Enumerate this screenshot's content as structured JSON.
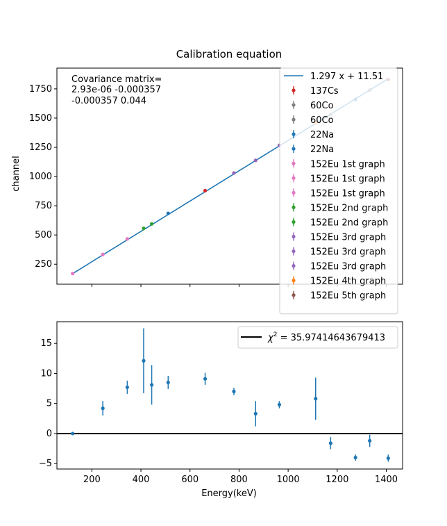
{
  "chart_data": [
    {
      "type": "scatter",
      "title": "Calibration equation",
      "xlabel": "",
      "ylabel": "channel",
      "xlim": [
        57.6,
        1466.4
      ],
      "ylim": [
        78.9,
        1927.7
      ],
      "x_ticks": [
        200,
        400,
        600,
        800,
        1000,
        1200,
        1400
      ],
      "y_ticks": [
        250,
        500,
        750,
        1000,
        1250,
        1500,
        1750
      ],
      "y_tick_labels": [
        "250",
        "500",
        "750",
        "1000",
        "1250",
        "1500",
        "1750"
      ],
      "annotation": [
        "Covariance matrix=",
        "2.93e-06   -0.000357",
        "-0.000357   0.044"
      ],
      "fit": {
        "label": "1.297 x + 11.51",
        "slope": 1.297,
        "intercept": 11.51,
        "x_range": [
          121.8,
          1408.0
        ],
        "color": "#1f77b4"
      },
      "legend_position": "upper right",
      "series": [
        {
          "name": "137Cs",
          "color": "#d62728",
          "points": [
            [
              661.7,
              879.0
            ]
          ]
        },
        {
          "name": "60Co",
          "color": "#7f7f7f",
          "points": [
            [
              1173.2,
              1531.0
            ]
          ]
        },
        {
          "name": "60Co",
          "color": "#7f7f7f",
          "points": [
            [
              1332.5,
              1739.0
            ]
          ]
        },
        {
          "name": "22Na",
          "color": "#1f77b4",
          "points": [
            [
              511.0,
              685.0
            ]
          ]
        },
        {
          "name": "22Na",
          "color": "#1f77b4",
          "points": [
            [
              1274.5,
              1660.0
            ]
          ]
        },
        {
          "name": "152Eu 1st graph",
          "color": "#e377c2",
          "points": [
            [
              121.8,
              170.0
            ]
          ]
        },
        {
          "name": "152Eu 1st graph",
          "color": "#e377c2",
          "points": [
            [
              244.7,
              333.0
            ]
          ]
        },
        {
          "name": "152Eu 1st graph",
          "color": "#e377c2",
          "points": [
            [
              344.3,
              466.0
            ]
          ]
        },
        {
          "name": "152Eu 2nd graph",
          "color": "#2ca02c",
          "points": [
            [
              411.1,
              557.0
            ]
          ]
        },
        {
          "name": "152Eu 2nd graph",
          "color": "#2ca02c",
          "points": [
            [
              444.0,
              595.0
            ]
          ]
        },
        {
          "name": "152Eu 3rd graph",
          "color": "#9467bd",
          "points": [
            [
              778.9,
              1030.0
            ]
          ]
        },
        {
          "name": "152Eu 3rd graph",
          "color": "#9467bd",
          "points": [
            [
              867.4,
              1138.0
            ]
          ]
        },
        {
          "name": "152Eu 3rd graph",
          "color": "#9467bd",
          "points": [
            [
              964.1,
              1267.0
            ]
          ]
        },
        {
          "name": "152Eu 4th graph",
          "color": "#ff7f0e",
          "points": [
            [
              1112.1,
              1460.0
            ]
          ]
        },
        {
          "name": "152Eu 5th graph",
          "color": "#8c564b",
          "points": [
            [
              1408.0,
              1830.0
            ]
          ]
        }
      ]
    },
    {
      "type": "scatter",
      "title": "",
      "xlabel": "Energy(keV)",
      "ylabel": "",
      "xlim": [
        57.6,
        1466.4
      ],
      "ylim": [
        -5.9,
        18.6
      ],
      "x_ticks": [
        200,
        400,
        600,
        800,
        1000,
        1200,
        1400
      ],
      "x_tick_labels": [
        "200",
        "400",
        "600",
        "800",
        "1000",
        "1200",
        "1400"
      ],
      "y_ticks": [
        -5,
        0,
        5,
        10,
        15
      ],
      "y_tick_labels": [
        "−5",
        "0",
        "5",
        "10",
        "15"
      ],
      "hline": 0,
      "legend": {
        "label": "χ² = 35.97414643679413",
        "label_main": "χ",
        "label_sup": "2",
        "label_rest": " = 35.97414643679413",
        "color": "#000000",
        "position": "upper right"
      },
      "color": "#1f77b4",
      "points": [
        {
          "x": 121.8,
          "y": 0.0,
          "err": 0.0
        },
        {
          "x": 244.7,
          "y": 4.2,
          "err": 1.2
        },
        {
          "x": 344.3,
          "y": 7.7,
          "err": 1.1
        },
        {
          "x": 411.1,
          "y": 12.1,
          "err": 5.4
        },
        {
          "x": 444.0,
          "y": 8.1,
          "err": 3.3
        },
        {
          "x": 511.0,
          "y": 8.5,
          "err": 1.1
        },
        {
          "x": 661.7,
          "y": 9.1,
          "err": 1.0
        },
        {
          "x": 778.9,
          "y": 7.0,
          "err": 0.6
        },
        {
          "x": 867.4,
          "y": 3.3,
          "err": 2.1
        },
        {
          "x": 964.1,
          "y": 4.8,
          "err": 0.6
        },
        {
          "x": 1112.1,
          "y": 5.8,
          "err": 3.5
        },
        {
          "x": 1173.2,
          "y": -1.6,
          "err": 1.0
        },
        {
          "x": 1274.5,
          "y": -4.0,
          "err": 0.5
        },
        {
          "x": 1332.5,
          "y": -1.2,
          "err": 1.0
        },
        {
          "x": 1408.0,
          "y": -4.1,
          "err": 0.6
        }
      ]
    }
  ]
}
